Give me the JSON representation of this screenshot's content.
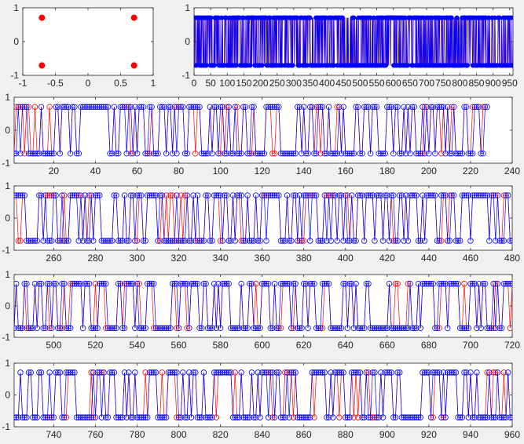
{
  "chart_data": [
    {
      "type": "scatter",
      "title": "",
      "xlabel": "",
      "ylabel": "",
      "xlim": [
        -1,
        1
      ],
      "ylim": [
        -1,
        1
      ],
      "xticks": [
        -1,
        -0.5,
        0,
        0.5,
        1
      ],
      "xtick_labels": [
        "-1",
        "-0.5",
        "0",
        "0.5",
        "1"
      ],
      "yticks": [
        -1,
        0,
        1
      ],
      "ytick_labels": [
        "-1",
        "0",
        "1"
      ],
      "grid": false,
      "series": [
        {
          "color": "#ff0000",
          "marker": "filled-circle",
          "points": [
            [
              -0.707,
              0.707
            ],
            [
              0.707,
              0.707
            ],
            [
              -0.707,
              -0.707
            ],
            [
              0.707,
              -0.707
            ]
          ]
        }
      ]
    },
    {
      "type": "line",
      "title": "",
      "xlabel": "",
      "ylabel": "",
      "xlim": [
        0,
        960
      ],
      "ylim": [
        -1,
        1
      ],
      "xticks": [
        0,
        50,
        100,
        150,
        200,
        250,
        300,
        350,
        400,
        450,
        500,
        550,
        600,
        650,
        700,
        750,
        800,
        850,
        900,
        950
      ],
      "xtick_labels": [
        "0",
        "50",
        "100",
        "150",
        "200",
        "250",
        "300",
        "350",
        "400",
        "450",
        "500",
        "550",
        "600",
        "650",
        "700",
        "750",
        "800",
        "850",
        "900",
        "950"
      ],
      "yticks": [
        -1,
        0,
        1
      ],
      "ytick_labels": [
        "-1",
        "0",
        "1"
      ],
      "grid": false,
      "levels": [
        -0.707,
        0.707
      ],
      "sample_count": 960,
      "sample_pattern": "alternating between the two levels; red and blue sequences nearly overlap",
      "series": [
        {
          "color": "#ff0000",
          "marker": "circle"
        },
        {
          "color": "#0000ff",
          "marker": "filled-circle"
        }
      ]
    },
    {
      "type": "line",
      "title": "",
      "xlabel": "",
      "ylabel": "",
      "xlim": [
        1,
        240
      ],
      "ylim": [
        -1,
        1
      ],
      "xticks": [
        20,
        40,
        60,
        80,
        100,
        120,
        140,
        160,
        180,
        200,
        220,
        240
      ],
      "xtick_labels": [
        "20",
        "40",
        "60",
        "80",
        "100",
        "120",
        "140",
        "160",
        "180",
        "200",
        "220",
        "240"
      ],
      "yticks": [
        -1,
        0,
        1
      ],
      "ytick_labels": [
        "-1",
        "0",
        "1"
      ],
      "grid": false,
      "levels": [
        -0.707,
        0.707
      ],
      "data_range": [
        1,
        228
      ],
      "series": [
        {
          "color": "#ff0000",
          "marker": "circle"
        },
        {
          "color": "#0000ff",
          "marker": "circle"
        }
      ]
    },
    {
      "type": "line",
      "title": "",
      "xlabel": "",
      "ylabel": "",
      "xlim": [
        241,
        480
      ],
      "ylim": [
        -1,
        1
      ],
      "xticks": [
        260,
        280,
        300,
        320,
        340,
        360,
        380,
        400,
        420,
        440,
        460,
        480
      ],
      "xtick_labels": [
        "260",
        "280",
        "300",
        "320",
        "340",
        "360",
        "380",
        "400",
        "420",
        "440",
        "460",
        "480"
      ],
      "yticks": [
        -1,
        0,
        1
      ],
      "ytick_labels": [
        "-1",
        "0",
        "1"
      ],
      "grid": false,
      "levels": [
        -0.707,
        0.707
      ],
      "data_range": [
        241,
        480
      ],
      "series": [
        {
          "color": "#ff0000",
          "marker": "circle"
        },
        {
          "color": "#0000ff",
          "marker": "circle"
        }
      ]
    },
    {
      "type": "line",
      "title": "",
      "xlabel": "",
      "ylabel": "",
      "xlim": [
        481,
        720
      ],
      "ylim": [
        -1,
        1
      ],
      "xticks": [
        500,
        520,
        540,
        560,
        580,
        600,
        620,
        640,
        660,
        680,
        700,
        720
      ],
      "xtick_labels": [
        "500",
        "520",
        "540",
        "560",
        "580",
        "600",
        "620",
        "640",
        "660",
        "680",
        "700",
        "720"
      ],
      "yticks": [
        -1,
        0,
        1
      ],
      "ytick_labels": [
        "-1",
        "0",
        "1"
      ],
      "grid": false,
      "levels": [
        -0.707,
        0.707
      ],
      "data_range": [
        481,
        720
      ],
      "series": [
        {
          "color": "#ff0000",
          "marker": "circle"
        },
        {
          "color": "#0000ff",
          "marker": "circle"
        }
      ]
    },
    {
      "type": "line",
      "title": "",
      "xlabel": "",
      "ylabel": "",
      "xlim": [
        721,
        960
      ],
      "ylim": [
        -1,
        1
      ],
      "xticks": [
        740,
        760,
        780,
        800,
        820,
        840,
        860,
        880,
        900,
        920,
        940,
        960
      ],
      "xtick_labels": [
        "740",
        "760",
        "780",
        "800",
        "820",
        "840",
        "860",
        "880",
        "900",
        "920",
        "940",
        "960"
      ],
      "yticks": [
        -1,
        0,
        1
      ],
      "ytick_labels": [
        "-1",
        "0",
        "1"
      ],
      "grid": false,
      "levels": [
        -0.707,
        0.707
      ],
      "data_range": [
        721,
        960
      ],
      "series": [
        {
          "color": "#ff0000",
          "marker": "circle"
        },
        {
          "color": "#0000ff",
          "marker": "circle"
        }
      ]
    }
  ]
}
